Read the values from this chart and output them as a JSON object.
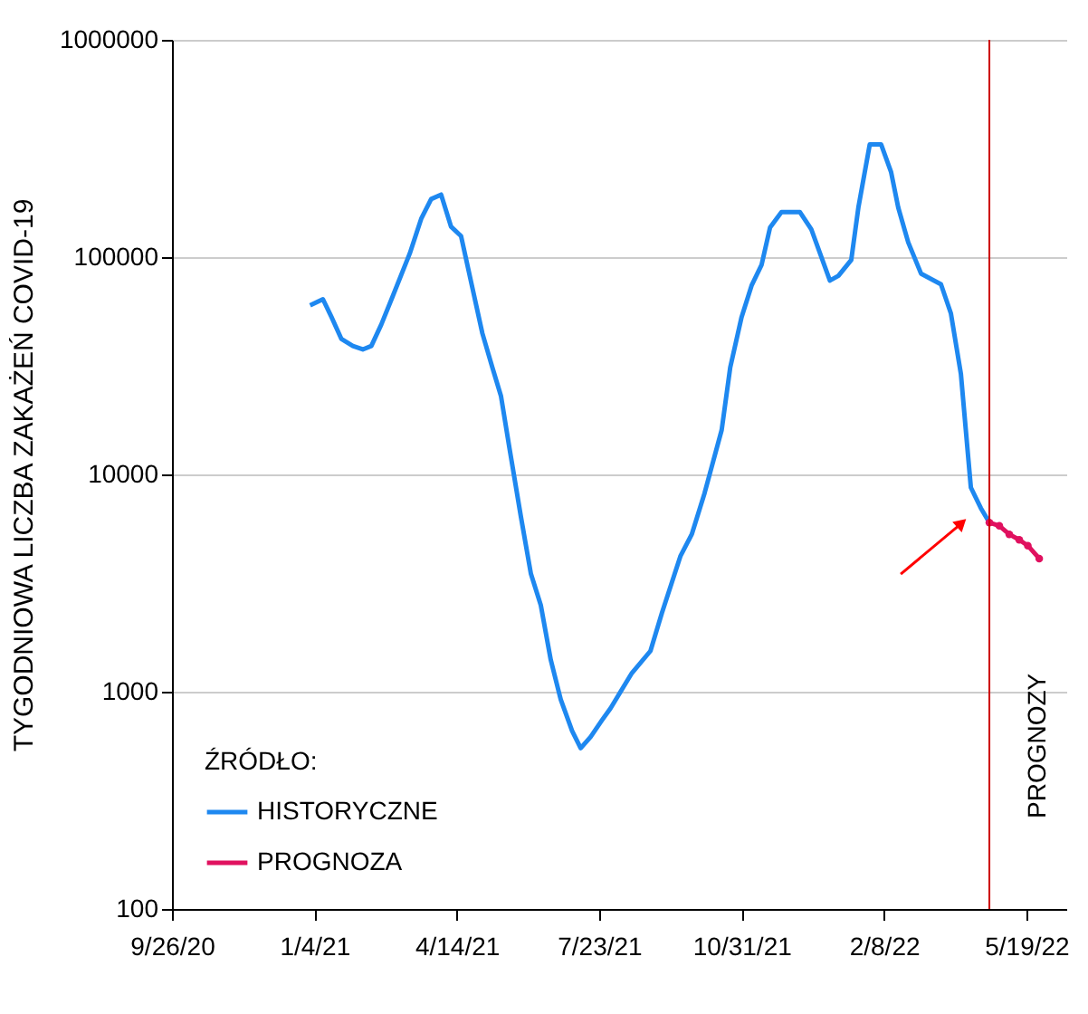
{
  "chart_data": {
    "type": "line",
    "ylabel": "TYGODNIOWA LICZBA ZAKAŻEŃ COVID-19",
    "legend_title": "ŹRÓDŁO:",
    "series": [
      {
        "name": "HISTORYCZNE",
        "color": "#1e88f0",
        "marker": "none",
        "x": [
          "2021-01-01",
          "2021-01-10",
          "2021-01-16",
          "2021-01-23",
          "2021-01-31",
          "2021-02-07",
          "2021-02-13",
          "2021-02-20",
          "2021-02-28",
          "2021-03-12",
          "2021-03-20",
          "2021-03-27",
          "2021-04-03",
          "2021-04-10",
          "2021-04-17",
          "2021-04-25",
          "2021-05-02",
          "2021-05-09",
          "2021-05-15",
          "2021-05-21",
          "2021-05-29",
          "2021-06-05",
          "2021-06-12",
          "2021-06-19",
          "2021-06-26",
          "2021-07-04",
          "2021-07-10",
          "2021-07-17",
          "2021-07-25",
          "2021-07-31",
          "2021-08-15",
          "2021-08-28",
          "2021-09-05",
          "2021-09-18",
          "2021-09-26",
          "2021-10-05",
          "2021-10-17",
          "2021-10-23",
          "2021-10-31",
          "2021-11-07",
          "2021-11-14",
          "2021-11-20",
          "2021-11-28",
          "2021-12-11",
          "2021-12-19",
          "2022-01-01",
          "2022-01-07",
          "2022-01-16",
          "2022-01-21",
          "2022-01-29",
          "2022-02-06",
          "2022-02-13",
          "2022-02-18",
          "2022-02-25",
          "2022-03-06",
          "2022-03-20",
          "2022-03-27",
          "2022-04-03",
          "2022-04-10",
          "2022-04-17",
          "2022-04-23"
        ],
        "values": [
          60000,
          64000,
          53000,
          42000,
          39000,
          37600,
          39000,
          49000,
          66000,
          104000,
          150000,
          185000,
          194000,
          138000,
          125000,
          72000,
          44500,
          31000,
          23000,
          13200,
          6400,
          3500,
          2500,
          1400,
          920,
          660,
          550,
          620,
          740,
          840,
          1220,
          1540,
          2300,
          4200,
          5300,
          8200,
          16000,
          31000,
          53000,
          74000,
          92000,
          137000,
          161000,
          161000,
          134000,
          78000,
          82000,
          97000,
          169000,
          330000,
          330000,
          246000,
          169000,
          117000,
          84000,
          75000,
          55000,
          29000,
          8700,
          7000,
          6000
        ]
      },
      {
        "name": "PROGNOZA",
        "color": "#e0115f",
        "marker": "circle",
        "x": [
          "2022-04-23",
          "2022-04-30",
          "2022-05-07",
          "2022-05-14",
          "2022-05-20",
          "2022-05-28"
        ],
        "values": [
          6000,
          5800,
          5300,
          5000,
          4700,
          4100
        ]
      }
    ],
    "xlim": [
      "2020-09-26",
      "2022-06-16"
    ],
    "xticks": [
      {
        "value": "2020-09-26",
        "label": "9/26/20"
      },
      {
        "value": "2021-01-04",
        "label": "1/4/21"
      },
      {
        "value": "2021-04-14",
        "label": "4/14/21"
      },
      {
        "value": "2021-07-23",
        "label": "7/23/21"
      },
      {
        "value": "2021-10-31",
        "label": "10/31/21"
      },
      {
        "value": "2022-02-08",
        "label": "2/8/22"
      },
      {
        "value": "2022-05-19",
        "label": "5/19/22"
      }
    ],
    "ylim": [
      100,
      1000000
    ],
    "yticks": [
      100,
      1000,
      10000,
      100000,
      1000000
    ],
    "log": true,
    "grid": "y",
    "legend": "bottom left",
    "ref_lines": [
      {
        "axis": "x",
        "value": "2022-04-23",
        "label": "PROGNOZY",
        "color": "#cc0000"
      }
    ]
  }
}
